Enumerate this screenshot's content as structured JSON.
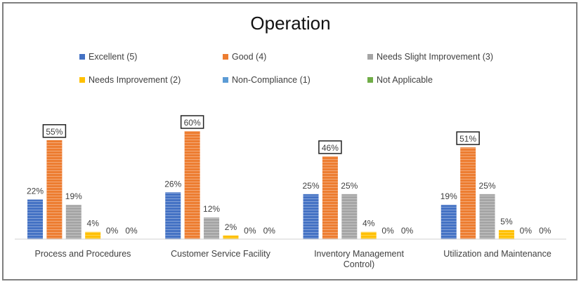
{
  "chart_data": {
    "type": "bar",
    "title": "Operation",
    "categories": [
      "Process and Procedures",
      "Customer Service Facility",
      "Inventory Management Control)",
      "Utilization and Maintenance"
    ],
    "series": [
      {
        "name": "Excellent (5)",
        "color": "#4472c4",
        "values": [
          22,
          26,
          25,
          19
        ]
      },
      {
        "name": "Good (4)",
        "color": "#ed7d31",
        "values": [
          55,
          60,
          46,
          51
        ]
      },
      {
        "name": "Needs Slight Improvement (3)",
        "color": "#a5a5a5",
        "values": [
          19,
          12,
          25,
          25
        ]
      },
      {
        "name": "Needs Improvement (2)",
        "color": "#ffc000",
        "values": [
          4,
          2,
          4,
          5
        ]
      },
      {
        "name": "Non-Compliance (1)",
        "color": "#5b9bd5",
        "values": [
          0,
          0,
          0,
          0
        ]
      },
      {
        "name": "Not Applicable",
        "color": "#70ad47",
        "values": [
          0,
          0,
          0,
          0
        ]
      }
    ],
    "data_labels": [
      [
        "22%",
        "55%",
        "19%",
        "4%",
        "0%",
        "0%"
      ],
      [
        "26%",
        "60%",
        "12%",
        "2%",
        "0%",
        "0%"
      ],
      [
        "25%",
        "46%",
        "25%",
        "4%",
        "0%",
        "0%"
      ],
      [
        "19%",
        "51%",
        "25%",
        "5%",
        "0%",
        "0%"
      ]
    ],
    "ylim": [
      0,
      60
    ],
    "grid": false,
    "legend_position": "top"
  }
}
